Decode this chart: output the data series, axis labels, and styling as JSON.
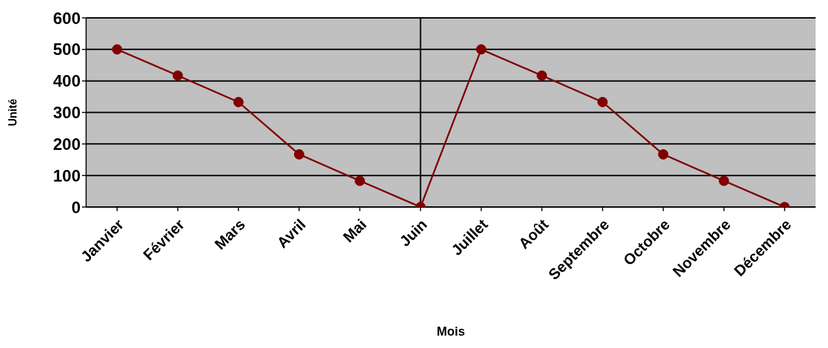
{
  "chart_data": {
    "type": "line",
    "xlabel": "Mois",
    "ylabel": "Unité",
    "categories": [
      "Janvier",
      "Février",
      "Mars",
      "Avril",
      "Mai",
      "Juin",
      "Juillet",
      "Août",
      "Septembre",
      "Octobre",
      "Novembre",
      "Décembre"
    ],
    "series": [
      {
        "color": "#800000",
        "values": [
          500,
          417,
          333,
          167,
          83,
          0,
          500,
          417,
          333,
          167,
          83,
          0
        ]
      }
    ],
    "ylim": [
      0,
      600
    ],
    "yticks": [
      0,
      100,
      200,
      300,
      400,
      500,
      600
    ],
    "grid": "y",
    "marker": "circle",
    "line_style": "solid",
    "ref_lines": [
      {
        "axis": "x",
        "value": "Juin",
        "color": "#000000"
      }
    ]
  }
}
